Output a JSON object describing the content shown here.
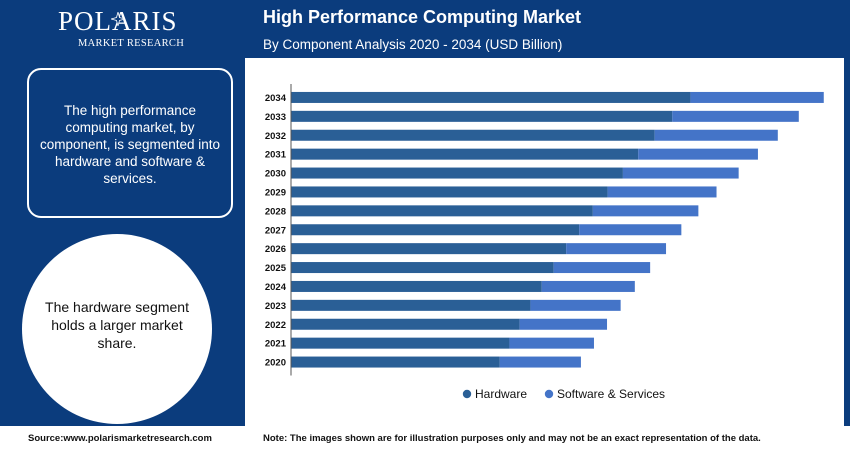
{
  "logo": {
    "name": "POLARIS",
    "tagline": "MARKET RESEARCH"
  },
  "header": {
    "title": "High Performance Computing Market",
    "subtitle": "By Component Analysis 2020 - 2034 (USD Billion)"
  },
  "left_panel": {
    "info_text": "The high performance computing market, by component, is segmented into hardware and software & services.",
    "highlight_text": "The hardware segment holds a larger market share."
  },
  "footer": {
    "source": "Source:www.polarismarketresearch.com",
    "note": "Note: The images shown are for illustration purposes only and may not be an exact representation of the data."
  },
  "colors": {
    "navy": "#0b3c7d",
    "hardware": "#2a5f96",
    "software": "#4474c8"
  },
  "chart_data": {
    "type": "bar",
    "orientation": "horizontal",
    "stacked": true,
    "title": "High Performance Computing Market",
    "subtitle": "By Component Analysis 2020 - 2034 (USD Billion)",
    "categories": [
      "2034",
      "2033",
      "2032",
      "2031",
      "2030",
      "2029",
      "2028",
      "2027",
      "2026",
      "2025",
      "2024",
      "2023",
      "2022",
      "2021",
      "2020"
    ],
    "series": [
      {
        "name": "Hardware",
        "color": "#2a5f96",
        "values": [
          70.4,
          67.2,
          64.1,
          61.2,
          58.5,
          55.8,
          53.2,
          50.8,
          48.5,
          46.3,
          44.2,
          42.2,
          40.3,
          38.5,
          36.8
        ]
      },
      {
        "name": "Software  & Services",
        "color": "#4474c8",
        "values": [
          23.5,
          22.3,
          21.7,
          21.1,
          20.4,
          19.2,
          18.6,
          18.0,
          17.6,
          17.0,
          16.4,
          15.9,
          15.4,
          14.9,
          14.3
        ]
      }
    ],
    "xlim": [
      0,
      95
    ],
    "legend_position": "bottom"
  }
}
